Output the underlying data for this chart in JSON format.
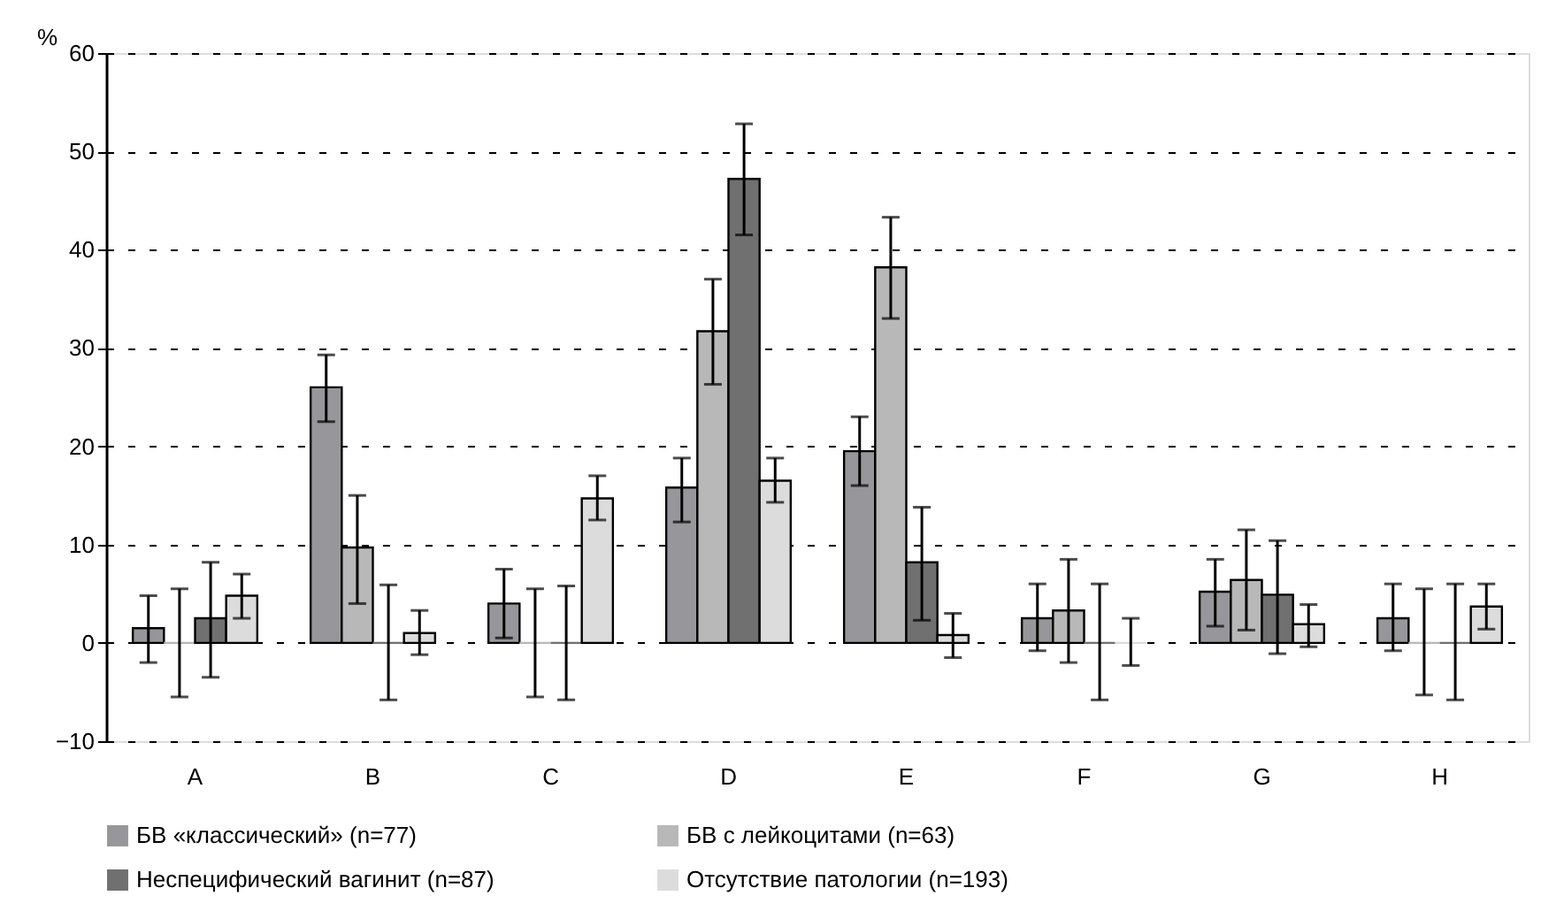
{
  "chart_data": {
    "type": "bar",
    "ylabel": "%",
    "categories": [
      "A",
      "B",
      "C",
      "D",
      "E",
      "F",
      "G",
      "H"
    ],
    "series": [
      {
        "name": "БВ «классический» (n=77)",
        "color": "#97979b",
        "values": [
          1.5,
          26,
          4,
          15.8,
          19.5,
          2.5,
          5.2,
          2.5
        ],
        "errors": [
          [
            -2,
            4.8
          ],
          [
            22.5,
            29.3
          ],
          [
            0.5,
            7.5
          ],
          [
            12.3,
            18.8
          ],
          [
            16,
            23
          ],
          [
            -0.8,
            6
          ],
          [
            1.7,
            8.5
          ],
          [
            -0.8,
            6
          ]
        ]
      },
      {
        "name": "БВ с лейкоцитами (n=63)",
        "color": "#b8b8b8",
        "values": [
          0,
          9.7,
          0,
          31.7,
          38.2,
          3.3,
          6.4,
          0
        ],
        "errors": [
          [
            -5.5,
            5.5
          ],
          [
            4,
            15
          ],
          [
            -5.5,
            5.5
          ],
          [
            26.3,
            37
          ],
          [
            33,
            43.3
          ],
          [
            -2,
            8.5
          ],
          [
            1.3,
            11.5
          ],
          [
            -5.3,
            5.5
          ]
        ]
      },
      {
        "name": "Неспецифический вагинит (n=87)",
        "color": "#707070",
        "values": [
          2.5,
          0,
          0,
          47.2,
          8.2,
          0,
          4.9,
          0
        ],
        "errors": [
          [
            -3.5,
            8.2
          ],
          [
            -5.8,
            5.9
          ],
          [
            -5.8,
            5.8
          ],
          [
            41.5,
            52.8
          ],
          [
            2.3,
            13.8
          ],
          [
            -5.8,
            6
          ],
          [
            -1.1,
            10.4
          ],
          [
            -5.8,
            6
          ]
        ]
      },
      {
        "name": "Отсутствие патологии (n=193)",
        "color": "#dcdcdc",
        "values": [
          4.8,
          1,
          14.7,
          16.5,
          0.8,
          0,
          1.9,
          3.7
        ],
        "errors": [
          [
            2.5,
            7
          ],
          [
            -1.2,
            3.3
          ],
          [
            12.5,
            17
          ],
          [
            14.3,
            18.8
          ],
          [
            -1.5,
            3
          ],
          [
            -2.3,
            2.5
          ],
          [
            -0.4,
            3.9
          ],
          [
            1.4,
            6
          ]
        ]
      }
    ],
    "ylim": [
      -10,
      60
    ],
    "yticks": [
      -10,
      0,
      10,
      20,
      30,
      40,
      50,
      60
    ],
    "grid": "y",
    "legend": "bottom"
  }
}
